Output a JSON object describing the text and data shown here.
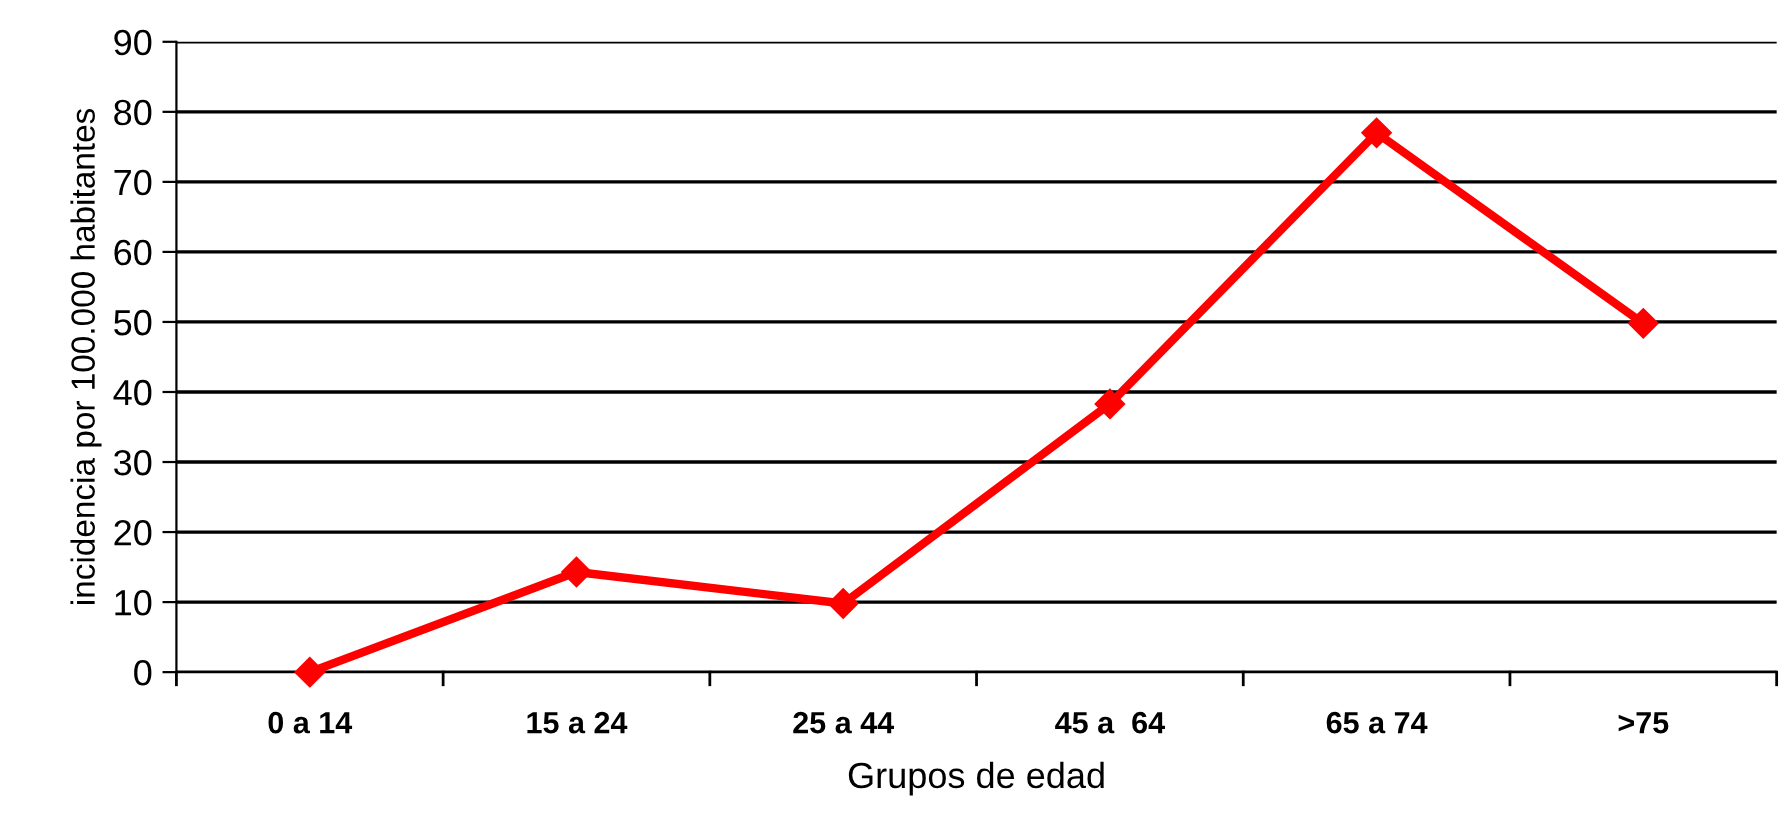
{
  "chart_data": {
    "type": "line",
    "xlabel": "Grupos de edad",
    "ylabel": "incidencia por 100.000 habitantes",
    "categories": [
      "0 a 14",
      "15 a 24",
      "25 a 44",
      "45 a  64",
      "65 a 74",
      ">75"
    ],
    "series": [
      {
        "color": "#ff0000",
        "values": [
          0,
          14.3,
          9.8,
          38.3,
          77,
          49.8
        ]
      }
    ],
    "ylim": [
      0,
      90
    ],
    "yticks": [
      0,
      10,
      20,
      30,
      40,
      50,
      60,
      70,
      80,
      90
    ],
    "grid": "y",
    "marker": "diamond",
    "line_style": "solid",
    "legend": false
  }
}
